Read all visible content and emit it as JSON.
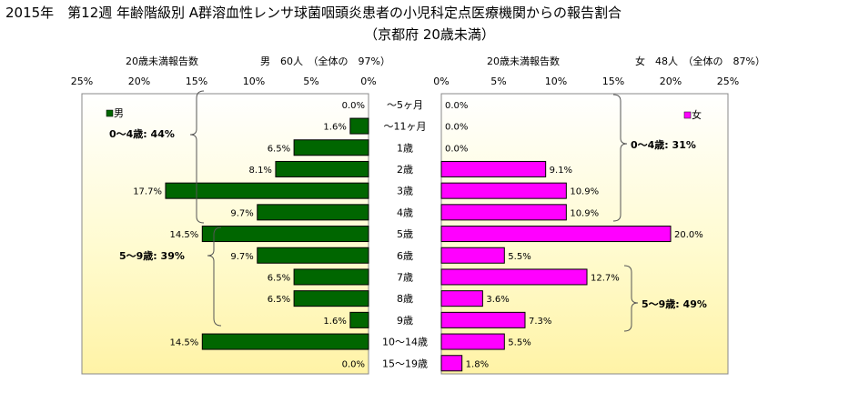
{
  "title_line1": "2015年　第12週 年齢階級別 A群溶血性レンサ球菌咽頭炎患者の小児科定点医療機関からの報告割合",
  "title_line2": "（京都府 20歳未満）",
  "chart_data": [
    {
      "type": "bar",
      "side": "left",
      "orientation": "horizontal",
      "axis_label": "20歳未満報告数",
      "header": "男　60人　（全体の　97%）",
      "legend": "男",
      "color": "#006600",
      "xlim": [
        0,
        25
      ],
      "x_ticks": [
        "25%",
        "20%",
        "15%",
        "10%",
        "5%",
        "0%"
      ],
      "categories": [
        "～5ヶ月",
        "～11ヶ月",
        "1歳",
        "2歳",
        "3歳",
        "4歳",
        "5歳",
        "6歳",
        "7歳",
        "8歳",
        "9歳",
        "10～14歳",
        "15～19歳"
      ],
      "values": [
        0.0,
        1.6,
        6.5,
        8.1,
        17.7,
        9.7,
        14.5,
        9.7,
        6.5,
        6.5,
        1.6,
        14.5,
        0.0
      ],
      "labels": [
        "0.0%",
        "1.6%",
        "6.5%",
        "8.1%",
        "17.7%",
        "9.7%",
        "14.5%",
        "9.7%",
        "6.5%",
        "6.5%",
        "1.6%",
        "14.5%",
        "0.0%"
      ],
      "annotations": [
        "0～4歳: 44%",
        "5～9歳: 39%"
      ]
    },
    {
      "type": "bar",
      "side": "right",
      "orientation": "horizontal",
      "axis_label": "20歳未満報告数",
      "header": "女　48人　（全体の　87%）",
      "legend": "女",
      "color": "#ff00ff",
      "xlim": [
        0,
        25
      ],
      "x_ticks": [
        "0%",
        "5%",
        "10%",
        "15%",
        "20%",
        "25%"
      ],
      "categories": [
        "～5ヶ月",
        "～11ヶ月",
        "1歳",
        "2歳",
        "3歳",
        "4歳",
        "5歳",
        "6歳",
        "7歳",
        "8歳",
        "9歳",
        "10～14歳",
        "15～19歳"
      ],
      "values": [
        0.0,
        0.0,
        0.0,
        9.1,
        10.9,
        10.9,
        20.0,
        5.5,
        12.7,
        3.6,
        7.3,
        5.5,
        1.8
      ],
      "labels": [
        "0.0%",
        "0.0%",
        "0.0%",
        "9.1%",
        "10.9%",
        "10.9%",
        "20.0%",
        "5.5%",
        "12.7%",
        "3.6%",
        "7.3%",
        "5.5%",
        "1.8%"
      ],
      "annotations": [
        "0～4歳: 31%",
        "5～9歳: 49%"
      ]
    }
  ]
}
